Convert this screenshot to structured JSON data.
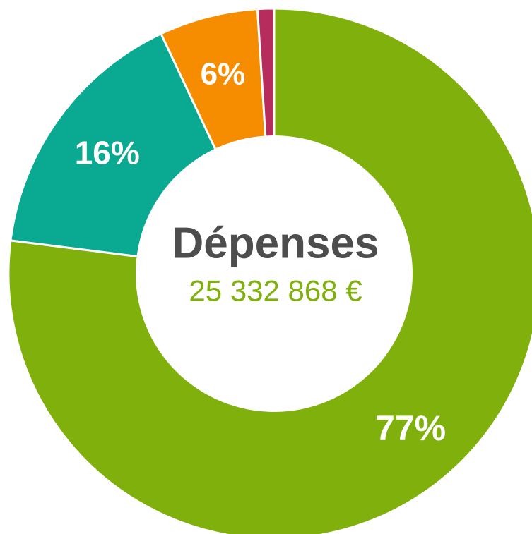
{
  "chart_data": {
    "type": "pie",
    "donut": true,
    "title": "Dépenses",
    "total_label": "25 332 868 €",
    "slices": [
      {
        "label": "77%",
        "value": 77,
        "color": "#7fb00b"
      },
      {
        "label": "16%",
        "value": 16,
        "color": "#0aa991"
      },
      {
        "label": "6%",
        "value": 6,
        "color": "#f68c00"
      },
      {
        "label": "",
        "value": 1,
        "color": "#b52c5d"
      }
    ]
  },
  "colors": {
    "title": "#4d4d4d",
    "amount": "#7fb00b",
    "slice_text": "#ffffff"
  }
}
